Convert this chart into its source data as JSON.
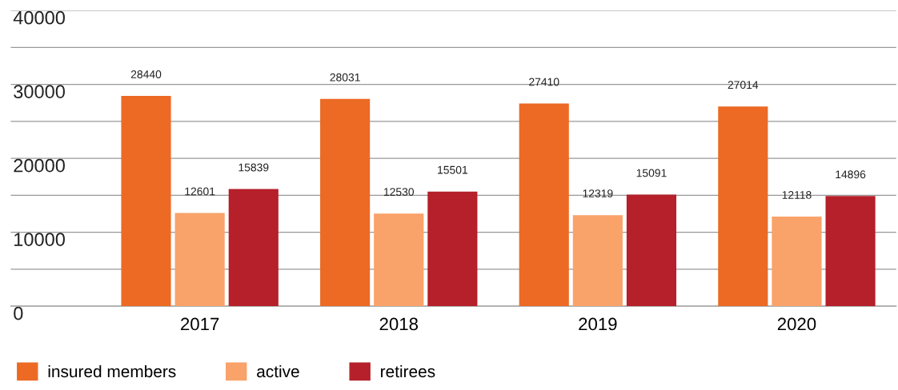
{
  "chart_data": {
    "type": "bar",
    "categories": [
      "2017",
      "2018",
      "2019",
      "2020"
    ],
    "series": [
      {
        "name": "insured members",
        "color": "#ec6a24",
        "values": [
          28440,
          28031,
          27410,
          27014
        ]
      },
      {
        "name": "active",
        "color": "#f9a26a",
        "values": [
          12601,
          12530,
          12319,
          12118
        ]
      },
      {
        "name": "retirees",
        "color": "#b5202a",
        "values": [
          15839,
          15501,
          15091,
          14896
        ]
      }
    ],
    "ylim": [
      0,
      40000
    ],
    "yticks": [
      0,
      {
        "value": 5000,
        "label": null
      },
      10000,
      {
        "value": 15000,
        "label": null
      },
      20000,
      {
        "value": 25000,
        "label": null
      },
      30000,
      {
        "value": 35000,
        "label": null
      },
      40000
    ],
    "grid": "y",
    "legend": "bottom left",
    "data_labels": true
  }
}
